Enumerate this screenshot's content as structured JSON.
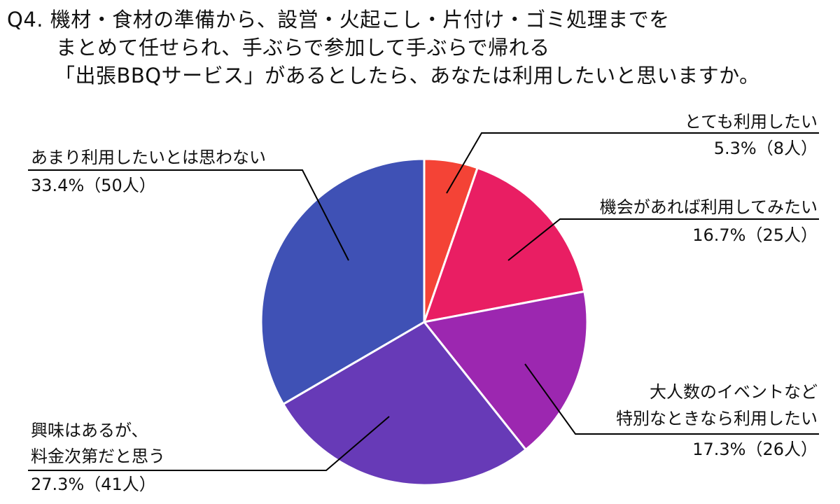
{
  "title": {
    "line1": "Q4. 機材・食材の準備から、設営・火起こし・片付け・ゴミ処理までを",
    "line2": "まとめて任せられ、手ぶらで参加して手ぶらで帰れる",
    "line3": "「出張BBQサービス」があるとしたら、あなたは利用したいと思いますか。"
  },
  "labels": {
    "s1": {
      "name": "とても利用したい",
      "value": "5.3%（8人）"
    },
    "s2": {
      "name": "機会があれば利用してみたい",
      "value": "16.7%（25人）"
    },
    "s3": {
      "name1": "大人数のイベントなど",
      "name2": "特別なときなら利用したい",
      "value": "17.3%（26人）"
    },
    "s4": {
      "name1": "興味はあるが、",
      "name2": "料金次第だと思う",
      "value": "27.3%（41人）"
    },
    "s5": {
      "name": "あまり利用したいとは思わない",
      "value": "33.4%（50人）"
    }
  },
  "chart_data": {
    "type": "pie",
    "title": "Q4. 機材・食材の準備から、設営・火起こし・片付け・ゴミ処理までをまとめて任せられ、手ぶらで参加して手ぶらで帰れる「出張BBQサービス」があるとしたら、あなたは利用したいと思いますか。",
    "categories": [
      "とても利用したい",
      "機会があれば利用してみたい",
      "大人数のイベントなど特別なときなら利用したい",
      "興味はあるが、料金次第だと思う",
      "あまり利用したいとは思わない"
    ],
    "values": [
      5.3,
      16.7,
      17.3,
      27.3,
      33.4
    ],
    "counts": [
      8,
      25,
      26,
      41,
      50
    ],
    "colors": [
      "#F44336",
      "#E91E63",
      "#9C27B0",
      "#673AB7",
      "#3F51B5"
    ],
    "start_angle": "12 o'clock, clockwise",
    "legend": "none (callout labels)"
  }
}
